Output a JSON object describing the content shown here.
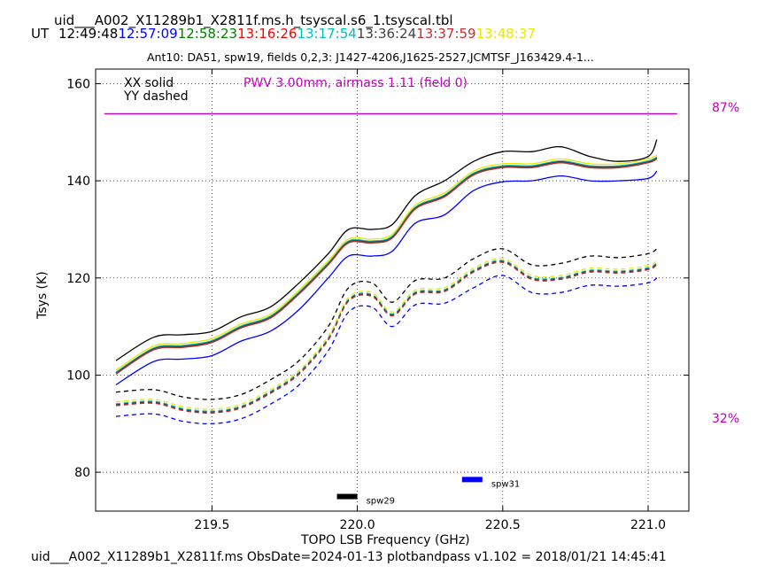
{
  "header": {
    "table_name": "uid___A002_X11289b1_X2811f.ms.h_tsyscal.s6_1.tsyscal.tbl",
    "ut_label": "UT",
    "ut_times": [
      {
        "text": "12:49:48",
        "color": "#000000"
      },
      {
        "text": "12:57:09",
        "color": "#0000ff"
      },
      {
        "text": "12:58:23",
        "color": "#008000"
      },
      {
        "text": "13:16:26",
        "color": "#ff0000"
      },
      {
        "text": "13:17:54",
        "color": "#00bfbf"
      },
      {
        "text": "13:36:24",
        "color": "#404040"
      },
      {
        "text": "13:37:59",
        "color": "#c03030"
      },
      {
        "text": "13:48:37",
        "color": "#e8e800"
      }
    ],
    "subtitle": "Ant10: DA51,  spw19,  fields 0,2,3: J1427-4206,J1625-2527,JCMTSF_J163429.4-1..."
  },
  "footer": "uid___A002_X11289b1_X2811f.ms  ObsDate=2024-01-13   plotbandpass v1.102 = 2018/01/21 14:45:41",
  "chart_data": {
    "type": "line",
    "title": "",
    "xlabel": "TOPO LSB Frequency (GHz)",
    "ylabel": "Tsys (K)",
    "xlim": [
      219.1,
      221.14
    ],
    "ylim": [
      72,
      163
    ],
    "xticks": [
      219.5,
      220.0,
      220.5,
      221.0
    ],
    "xtick_labels": [
      "219.5",
      "220.0",
      "220.5",
      "221.0"
    ],
    "yticks": [
      80,
      100,
      120,
      140,
      160
    ],
    "ytick_labels": [
      "80",
      "100",
      "120",
      "140",
      "160"
    ],
    "grid": true,
    "legend_text": [
      "XX solid",
      "YY dashed"
    ],
    "pwv_label": "PWV 3.00mm, airmass 1.11 (field 0)",
    "pwv_color": "#c000c0",
    "transmission_labels": [
      "87%",
      "32%"
    ],
    "transmission_line_tsys": 153.8,
    "transmission_line_x": [
      219.13,
      221.1
    ],
    "profile_x": [
      219.17,
      219.3,
      219.4,
      219.5,
      219.6,
      219.7,
      219.8,
      219.9,
      219.97,
      220.05,
      220.12,
      220.2,
      220.3,
      220.4,
      220.5,
      220.6,
      220.7,
      220.8,
      220.9,
      221.0,
      221.03
    ],
    "xx_series": [
      {
        "name": "12:49:48",
        "color": "#000000",
        "values": [
          103,
          107.8,
          108.3,
          109,
          112,
          114,
          119,
          125,
          130,
          130,
          131,
          137,
          140,
          144,
          146,
          146,
          147,
          145,
          144,
          145,
          148.5
        ]
      },
      {
        "name": "12:57:09",
        "color": "#0000ff",
        "values": [
          98,
          102.8,
          103.3,
          104,
          107,
          109,
          113.5,
          120,
          124.5,
          124.5,
          125.5,
          131.3,
          133,
          138,
          139.8,
          140,
          141,
          140,
          140,
          140.5,
          142
        ]
      },
      {
        "name": "12:58:23",
        "color": "#008000",
        "values": [
          100.5,
          105.5,
          106,
          107,
          110,
          112,
          117,
          123,
          127.5,
          127.5,
          128.5,
          134.5,
          137,
          141.5,
          143,
          143,
          144,
          143,
          143,
          144,
          144.8
        ]
      },
      {
        "name": "13:16:26",
        "color": "#ff0000",
        "values": [
          100.3,
          105.3,
          105.8,
          106.8,
          109.8,
          111.8,
          116.8,
          122.8,
          127.3,
          127.3,
          128.3,
          134.3,
          136.8,
          141.3,
          142.8,
          142.8,
          143.8,
          142.8,
          142.8,
          143.8,
          144.6
        ]
      },
      {
        "name": "13:17:54",
        "color": "#00bfbf",
        "values": [
          100.6,
          105.6,
          106.1,
          107.1,
          110.1,
          112.1,
          117.1,
          123.1,
          127.6,
          127.6,
          128.6,
          134.6,
          137.1,
          141.6,
          143.1,
          143.1,
          144.1,
          143.1,
          143.1,
          144.1,
          144.9
        ]
      },
      {
        "name": "13:36:24",
        "color": "#404040",
        "values": [
          100.4,
          105.4,
          105.9,
          106.9,
          109.9,
          111.9,
          116.9,
          122.9,
          127.4,
          127.4,
          128.4,
          134.4,
          136.9,
          141.4,
          142.9,
          142.9,
          143.9,
          142.9,
          142.9,
          143.9,
          144.7
        ]
      },
      {
        "name": "13:37:59",
        "color": "#c03030",
        "values": [
          100.2,
          105.2,
          105.7,
          106.7,
          109.7,
          111.7,
          116.7,
          122.7,
          127.2,
          127.2,
          128.2,
          134.2,
          136.7,
          141.2,
          142.7,
          142.7,
          143.7,
          142.7,
          142.7,
          143.7,
          144.5
        ]
      },
      {
        "name": "13:48:37",
        "color": "#e8e800",
        "values": [
          101,
          106,
          106.5,
          107.5,
          110.5,
          112.5,
          117.5,
          123.5,
          128,
          128,
          129,
          135,
          137.5,
          142,
          143.5,
          143.5,
          144.5,
          143.5,
          143.5,
          144.5,
          145.3
        ]
      }
    ],
    "yy_series": [
      {
        "name": "12:49:48",
        "color": "#000000",
        "values": [
          96.5,
          97,
          95.5,
          95,
          96,
          99,
          103,
          110,
          118,
          119,
          115,
          119.5,
          120,
          124,
          126,
          122.7,
          123,
          124.5,
          124.2,
          125,
          126
        ]
      },
      {
        "name": "12:57:09",
        "color": "#0000ff",
        "values": [
          91.5,
          92,
          90.5,
          90,
          91,
          94,
          98,
          105,
          113,
          114,
          110,
          114.5,
          114.8,
          118,
          120.5,
          117,
          117,
          118.5,
          118.3,
          119,
          120
        ]
      },
      {
        "name": "12:58:23",
        "color": "#008000",
        "values": [
          94,
          94.5,
          93,
          92.5,
          93.5,
          96.5,
          100.5,
          107.5,
          115.5,
          116.5,
          112.5,
          117,
          117.5,
          121.5,
          123.5,
          120,
          120,
          121.5,
          121.3,
          122,
          123
        ]
      },
      {
        "name": "13:16:26",
        "color": "#ff0000",
        "values": [
          93.8,
          94.3,
          92.8,
          92.3,
          93.3,
          96.3,
          100.3,
          107.3,
          115.3,
          116.3,
          112.3,
          116.8,
          117.3,
          121.3,
          123.3,
          119.8,
          119.8,
          121.3,
          121.1,
          121.8,
          122.8
        ]
      },
      {
        "name": "13:17:54",
        "color": "#00bfbf",
        "values": [
          94.1,
          94.6,
          93.1,
          92.6,
          93.6,
          96.6,
          100.6,
          107.6,
          115.6,
          116.6,
          112.6,
          117.1,
          117.6,
          121.6,
          123.6,
          120.1,
          120.1,
          121.6,
          121.4,
          122.1,
          123.1
        ]
      },
      {
        "name": "13:36:24",
        "color": "#404040",
        "values": [
          93.9,
          94.4,
          92.9,
          92.4,
          93.4,
          96.4,
          100.4,
          107.4,
          115.4,
          116.4,
          112.4,
          116.9,
          117.4,
          121.4,
          123.4,
          119.9,
          119.9,
          121.4,
          121.2,
          121.9,
          122.9
        ]
      },
      {
        "name": "13:37:59",
        "color": "#c03030",
        "values": [
          93.7,
          94.2,
          92.7,
          92.2,
          93.2,
          96.2,
          100.2,
          107.2,
          115.2,
          116.2,
          112.2,
          116.7,
          117.2,
          121.2,
          123.2,
          119.7,
          119.7,
          121.2,
          121,
          121.7,
          122.7
        ]
      },
      {
        "name": "13:48:37",
        "color": "#e8e800",
        "values": [
          94.5,
          95,
          93.5,
          93,
          94,
          97,
          101,
          108,
          116,
          117,
          113,
          117.5,
          118,
          122,
          124,
          120.5,
          120.5,
          122,
          121.8,
          122.5,
          123.5
        ]
      }
    ],
    "spw_markers": [
      {
        "label": "spw29",
        "color": "#000000",
        "x_start": 219.93,
        "x_end": 220.0,
        "y": 75
      },
      {
        "label": "spw31",
        "color": "#0000ff",
        "x_start": 220.36,
        "x_end": 220.43,
        "y": 78.5
      }
    ]
  }
}
